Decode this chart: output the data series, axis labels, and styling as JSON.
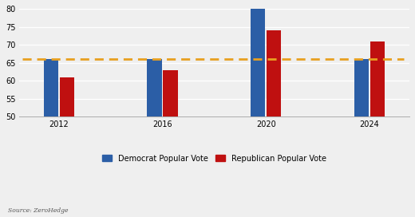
{
  "years": [
    2012,
    2016,
    2020,
    2024
  ],
  "democrat_votes": [
    66,
    66,
    81,
    66
  ],
  "republican_votes": [
    61,
    63,
    74,
    71
  ],
  "democrat_color": "#2b5ea6",
  "republican_color": "#bf1010",
  "dashed_line_y": 66,
  "dashed_line_color": "#e8a020",
  "ylim": [
    50,
    80
  ],
  "yticks": [
    50,
    55,
    60,
    65,
    70,
    75,
    80
  ],
  "bar_width": 1.4,
  "legend_democrat": "Democrat Popular Vote",
  "legend_republican": "Republican Popular Vote",
  "source_text": "Source: ZeroHedge",
  "background_color": "#efefef",
  "group_centers": [
    0,
    10,
    20,
    30
  ],
  "bar_bottom": 50
}
